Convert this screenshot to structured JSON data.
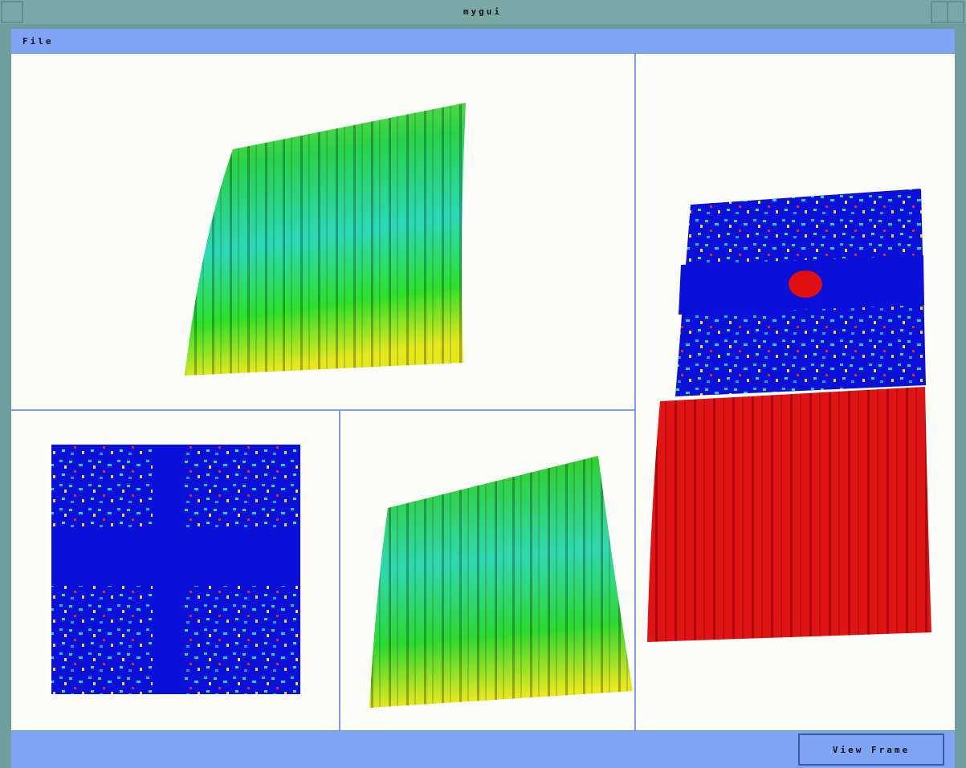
{
  "window": {
    "title": "mygui"
  },
  "menu": {
    "items": [
      "File"
    ]
  },
  "buttons": [
    "View Frame"
  ]
}
